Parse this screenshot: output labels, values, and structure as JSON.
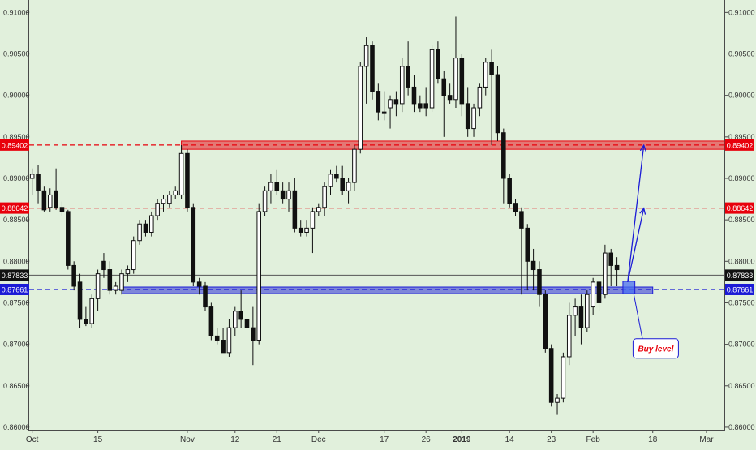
{
  "chart_data": {
    "type": "candlestick",
    "title": "",
    "xlabel": "",
    "ylabel": "",
    "ylim": [
      0.8597,
      0.9115
    ],
    "y_ticks": [
      "0.91000",
      "0.90500",
      "0.90000",
      "0.89500",
      "0.89000",
      "0.88500",
      "0.88000",
      "0.87500",
      "0.87000",
      "0.86500",
      "0.86000"
    ],
    "x_ticks": [
      {
        "label": "Oct",
        "index": 0
      },
      {
        "label": "15",
        "index": 11
      },
      {
        "label": "Nov",
        "index": 26
      },
      {
        "label": "12",
        "index": 34
      },
      {
        "label": "21",
        "index": 41
      },
      {
        "label": "Dec",
        "index": 48
      },
      {
        "label": "17",
        "index": 59
      },
      {
        "label": "26",
        "index": 66
      },
      {
        "label": "2019",
        "index": 72,
        "bold": true
      },
      {
        "label": "14",
        "index": 80
      },
      {
        "label": "23",
        "index": 87
      },
      {
        "label": "Feb",
        "index": 94
      },
      {
        "label": "18",
        "index": 104
      },
      {
        "label": "Mar",
        "index": 113
      }
    ],
    "x_span": [
      -0.5,
      116
    ],
    "levels": [
      {
        "name": "resistance",
        "value": 0.89402,
        "label": "0.89402",
        "color": "#e8000b"
      },
      {
        "name": "mid",
        "value": 0.88642,
        "label": "0.88642",
        "color": "#e8000b"
      },
      {
        "name": "current",
        "value": 0.87833,
        "label": "0.87833",
        "color": "#111111"
      },
      {
        "name": "support",
        "value": 0.87661,
        "label": "0.87661",
        "color": "#1b1bd6"
      }
    ],
    "zones": [
      {
        "name": "resistance-zone",
        "from_index": 25,
        "to_index": 116,
        "low": 0.8935,
        "high": 0.8945,
        "color": "#e8000b"
      },
      {
        "name": "support-zone",
        "from_index": 15,
        "to_index": 104,
        "low": 0.8761,
        "high": 0.8769,
        "color": "#1b1bd6"
      }
    ],
    "projection": {
      "start_index": 99.8,
      "start_value": 0.8775,
      "targets": [
        0.8864,
        0.894
      ],
      "target_index": 102.5,
      "box_from_index": 99,
      "box_to_index": 101,
      "box_low": 0.8761,
      "box_high": 0.8776
    },
    "annotation": {
      "text": "Buy level",
      "index": 104.5,
      "value": 0.8695,
      "arrow_from_index": 100.8,
      "arrow_from_value": 0.8761
    },
    "candles": [
      [
        0.89,
        0.8912,
        0.888,
        0.8905
      ],
      [
        0.8905,
        0.8916,
        0.887,
        0.8885
      ],
      [
        0.8885,
        0.889,
        0.886,
        0.8862
      ],
      [
        0.8865,
        0.8888,
        0.886,
        0.888
      ],
      [
        0.8885,
        0.8912,
        0.8862,
        0.8865
      ],
      [
        0.8865,
        0.8872,
        0.8855,
        0.886
      ],
      [
        0.886,
        0.8862,
        0.879,
        0.8795
      ],
      [
        0.8795,
        0.88,
        0.8765,
        0.877
      ],
      [
        0.8775,
        0.8785,
        0.872,
        0.873
      ],
      [
        0.873,
        0.8745,
        0.8722,
        0.8725
      ],
      [
        0.8725,
        0.876,
        0.872,
        0.8755
      ],
      [
        0.8755,
        0.879,
        0.874,
        0.8785
      ],
      [
        0.88,
        0.881,
        0.878,
        0.879
      ],
      [
        0.879,
        0.88,
        0.876,
        0.8765
      ],
      [
        0.8765,
        0.8775,
        0.876,
        0.877
      ],
      [
        0.8765,
        0.879,
        0.876,
        0.8785
      ],
      [
        0.8785,
        0.8795,
        0.8775,
        0.879
      ],
      [
        0.879,
        0.883,
        0.8785,
        0.8825
      ],
      [
        0.8825,
        0.885,
        0.882,
        0.8845
      ],
      [
        0.8845,
        0.885,
        0.883,
        0.8835
      ],
      [
        0.8835,
        0.886,
        0.883,
        0.8855
      ],
      [
        0.8855,
        0.8875,
        0.885,
        0.887
      ],
      [
        0.887,
        0.888,
        0.886,
        0.8875
      ],
      [
        0.887,
        0.8885,
        0.8865,
        0.888
      ],
      [
        0.888,
        0.889,
        0.8875,
        0.8885
      ],
      [
        0.888,
        0.894,
        0.8875,
        0.893
      ],
      [
        0.893,
        0.8935,
        0.886,
        0.8865
      ],
      [
        0.8865,
        0.887,
        0.877,
        0.8775
      ],
      [
        0.8775,
        0.878,
        0.876,
        0.877
      ],
      [
        0.877,
        0.8775,
        0.874,
        0.8745
      ],
      [
        0.8745,
        0.875,
        0.8705,
        0.871
      ],
      [
        0.871,
        0.872,
        0.87,
        0.8705
      ],
      [
        0.8705,
        0.872,
        0.869,
        0.869
      ],
      [
        0.869,
        0.873,
        0.8685,
        0.872
      ],
      [
        0.872,
        0.8745,
        0.871,
        0.874
      ],
      [
        0.874,
        0.8765,
        0.872,
        0.873
      ],
      [
        0.873,
        0.8745,
        0.8655,
        0.872
      ],
      [
        0.872,
        0.8745,
        0.8675,
        0.8705
      ],
      [
        0.8705,
        0.887,
        0.87,
        0.886
      ],
      [
        0.886,
        0.889,
        0.8855,
        0.8885
      ],
      [
        0.8885,
        0.8905,
        0.887,
        0.8895
      ],
      [
        0.8895,
        0.891,
        0.888,
        0.8885
      ],
      [
        0.8885,
        0.8895,
        0.887,
        0.8875
      ],
      [
        0.8875,
        0.8895,
        0.886,
        0.8885
      ],
      [
        0.8885,
        0.89,
        0.8835,
        0.884
      ],
      [
        0.884,
        0.885,
        0.883,
        0.8835
      ],
      [
        0.8835,
        0.885,
        0.883,
        0.884
      ],
      [
        0.884,
        0.8865,
        0.881,
        0.886
      ],
      [
        0.886,
        0.887,
        0.8855,
        0.8865
      ],
      [
        0.8865,
        0.8895,
        0.8855,
        0.889
      ],
      [
        0.889,
        0.891,
        0.888,
        0.8905
      ],
      [
        0.8905,
        0.8915,
        0.8895,
        0.89
      ],
      [
        0.89,
        0.8915,
        0.888,
        0.8885
      ],
      [
        0.8885,
        0.89,
        0.887,
        0.8895
      ],
      [
        0.8895,
        0.894,
        0.8885,
        0.8935
      ],
      [
        0.8935,
        0.904,
        0.893,
        0.9035
      ],
      [
        0.9035,
        0.907,
        0.899,
        0.906
      ],
      [
        0.906,
        0.9065,
        0.8995,
        0.9005
      ],
      [
        0.9005,
        0.9015,
        0.897,
        0.898
      ],
      [
        0.898,
        0.9005,
        0.897,
        0.898
      ],
      [
        0.8985,
        0.9,
        0.896,
        0.8995
      ],
      [
        0.8995,
        0.9005,
        0.8975,
        0.899
      ],
      [
        0.899,
        0.9045,
        0.898,
        0.9035
      ],
      [
        0.9035,
        0.9065,
        0.9,
        0.901
      ],
      [
        0.901,
        0.9025,
        0.898,
        0.899
      ],
      [
        0.899,
        0.9,
        0.898,
        0.8985
      ],
      [
        0.899,
        0.901,
        0.8975,
        0.8985
      ],
      [
        0.8985,
        0.906,
        0.898,
        0.9055
      ],
      [
        0.9055,
        0.9065,
        0.9015,
        0.902
      ],
      [
        0.902,
        0.903,
        0.895,
        0.9
      ],
      [
        0.9,
        0.9015,
        0.899,
        0.8995
      ],
      [
        0.8995,
        0.9095,
        0.8985,
        0.9045
      ],
      [
        0.9045,
        0.905,
        0.8975,
        0.899
      ],
      [
        0.899,
        0.901,
        0.895,
        0.896
      ],
      [
        0.896,
        0.899,
        0.895,
        0.8985
      ],
      [
        0.8985,
        0.9015,
        0.8975,
        0.901
      ],
      [
        0.901,
        0.9045,
        0.9,
        0.904
      ],
      [
        0.904,
        0.9055,
        0.894,
        0.9025
      ],
      [
        0.9025,
        0.9035,
        0.8945,
        0.8955
      ],
      [
        0.8955,
        0.896,
        0.887,
        0.89
      ],
      [
        0.89,
        0.8905,
        0.8865,
        0.887
      ],
      [
        0.887,
        0.8875,
        0.8855,
        0.886
      ],
      [
        0.886,
        0.8865,
        0.876,
        0.884
      ],
      [
        0.884,
        0.8845,
        0.8765,
        0.88
      ],
      [
        0.88,
        0.8815,
        0.8765,
        0.879
      ],
      [
        0.879,
        0.88,
        0.8745,
        0.876
      ],
      [
        0.876,
        0.8765,
        0.869,
        0.8695
      ],
      [
        0.8695,
        0.87,
        0.8625,
        0.863
      ],
      [
        0.863,
        0.864,
        0.8615,
        0.8635
      ],
      [
        0.8635,
        0.869,
        0.863,
        0.8685
      ],
      [
        0.8685,
        0.875,
        0.8675,
        0.8735
      ],
      [
        0.8735,
        0.8755,
        0.871,
        0.8745
      ],
      [
        0.8745,
        0.876,
        0.87,
        0.872
      ],
      [
        0.872,
        0.8765,
        0.8715,
        0.876
      ],
      [
        0.8745,
        0.878,
        0.8735,
        0.8775
      ],
      [
        0.8775,
        0.8775,
        0.874,
        0.875
      ],
      [
        0.876,
        0.882,
        0.8755,
        0.881
      ],
      [
        0.881,
        0.8815,
        0.877,
        0.8795
      ],
      [
        0.8795,
        0.8805,
        0.877,
        0.879
      ]
    ]
  }
}
